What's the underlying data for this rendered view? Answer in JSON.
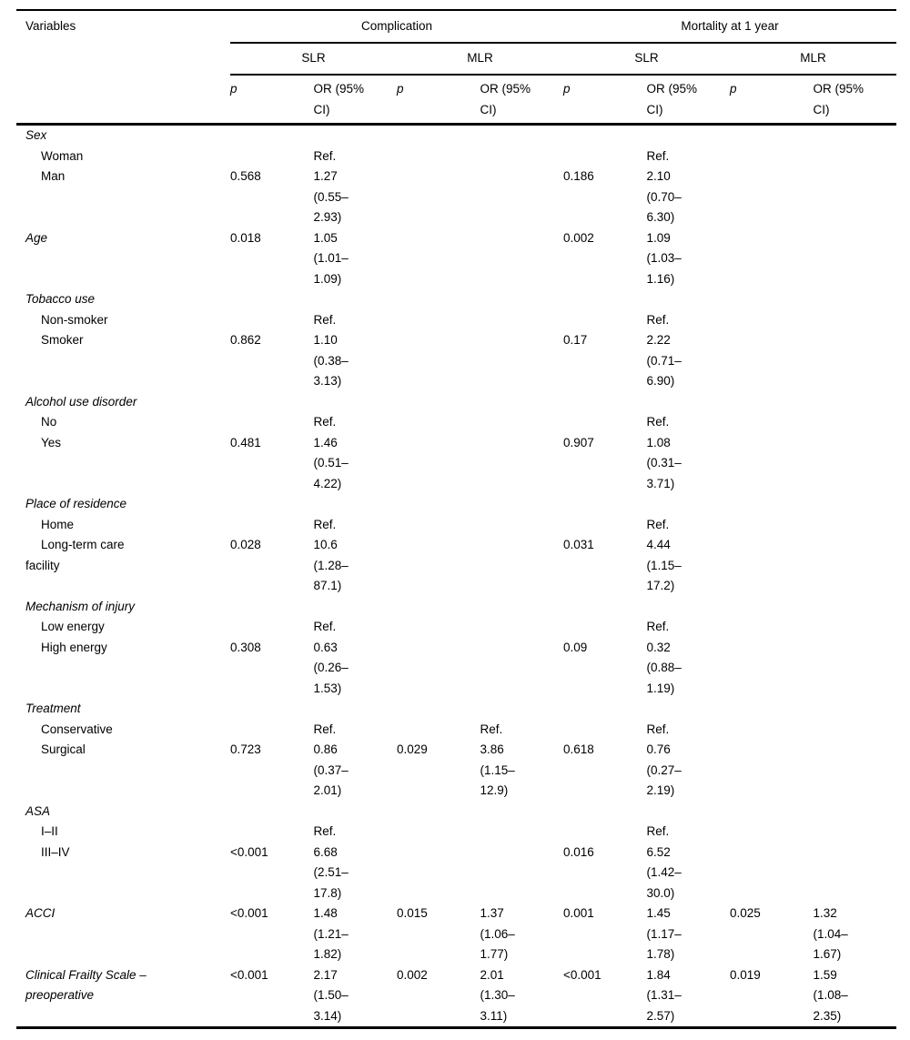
{
  "table": {
    "col_headers": {
      "variables": "Variables",
      "groups": [
        {
          "label": "Complication"
        },
        {
          "label": "Mortality at 1 year"
        }
      ],
      "subgroups": [
        "SLR",
        "MLR",
        "SLR",
        "MLR"
      ],
      "p_label": "p",
      "or_label": "OR (95%\nCI)"
    },
    "rows": [
      {
        "label": "Sex",
        "style": "section",
        "cells": [
          "",
          "",
          "",
          "",
          "",
          "",
          "",
          ""
        ]
      },
      {
        "label": "Woman",
        "style": "item",
        "cells": [
          "",
          "Ref.",
          "",
          "",
          "",
          "Ref.",
          "",
          ""
        ]
      },
      {
        "label": "Man",
        "style": "item",
        "cells": [
          "0.568",
          "1.27\n(0.55–\n2.93)",
          "",
          "",
          "0.186",
          "2.10\n(0.70–\n6.30)",
          "",
          ""
        ]
      },
      {
        "label": "Age",
        "style": "section",
        "cells": [
          "0.018",
          "1.05\n(1.01–\n1.09)",
          "",
          "",
          "0.002",
          "1.09\n(1.03–\n1.16)",
          "",
          ""
        ]
      },
      {
        "label": "Tobacco use",
        "style": "section",
        "cells": [
          "",
          "",
          "",
          "",
          "",
          "",
          "",
          ""
        ]
      },
      {
        "label": "Non-smoker",
        "style": "item",
        "cells": [
          "",
          "Ref.",
          "",
          "",
          "",
          "Ref.",
          "",
          ""
        ]
      },
      {
        "label": "Smoker",
        "style": "item",
        "cells": [
          "0.862",
          "1.10\n(0.38–\n3.13)",
          "",
          "",
          "0.17",
          "2.22\n(0.71–\n6.90)",
          "",
          ""
        ]
      },
      {
        "label": "Alcohol use disorder",
        "style": "section",
        "cells": [
          "",
          "",
          "",
          "",
          "",
          "",
          "",
          ""
        ]
      },
      {
        "label": "No",
        "style": "item",
        "cells": [
          "",
          "Ref.",
          "",
          "",
          "",
          "Ref.",
          "",
          ""
        ]
      },
      {
        "label": "Yes",
        "style": "item",
        "cells": [
          "0.481",
          "1.46\n(0.51–\n4.22)",
          "",
          "",
          "0.907",
          "1.08\n(0.31–\n3.71)",
          "",
          ""
        ]
      },
      {
        "label": "Place of residence",
        "style": "section",
        "cells": [
          "",
          "",
          "",
          "",
          "",
          "",
          "",
          ""
        ]
      },
      {
        "label": "Home",
        "style": "item",
        "cells": [
          "",
          "Ref.",
          "",
          "",
          "",
          "Ref.",
          "",
          ""
        ]
      },
      {
        "label": "Long-term care\nfacility",
        "style": "item",
        "cells": [
          "0.028",
          "10.6\n(1.28–\n87.1)",
          "",
          "",
          "0.031",
          "4.44\n(1.15–\n17.2)",
          "",
          ""
        ]
      },
      {
        "label": "Mechanism of injury",
        "style": "section",
        "cells": [
          "",
          "",
          "",
          "",
          "",
          "",
          "",
          ""
        ]
      },
      {
        "label": "Low energy",
        "style": "item",
        "cells": [
          "",
          "Ref.",
          "",
          "",
          "",
          "Ref.",
          "",
          ""
        ]
      },
      {
        "label": "High energy",
        "style": "item",
        "cells": [
          "0.308",
          "0.63\n(0.26–\n1.53)",
          "",
          "",
          "0.09",
          "0.32\n(0.88–\n1.19)",
          "",
          ""
        ]
      },
      {
        "label": "Treatment",
        "style": "section",
        "cells": [
          "",
          "",
          "",
          "",
          "",
          "",
          "",
          ""
        ]
      },
      {
        "label": "Conservative",
        "style": "item",
        "cells": [
          "",
          "Ref.",
          "",
          "Ref.",
          "",
          "Ref.",
          "",
          ""
        ]
      },
      {
        "label": "Surgical",
        "style": "item",
        "cells": [
          "0.723",
          "0.86\n(0.37–\n2.01)",
          "0.029",
          "3.86\n(1.15–\n12.9)",
          "0.618",
          "0.76\n(0.27–\n2.19)",
          "",
          ""
        ]
      },
      {
        "label": "ASA",
        "style": "section",
        "cells": [
          "",
          "",
          "",
          "",
          "",
          "",
          "",
          ""
        ]
      },
      {
        "label": "I–II",
        "style": "item",
        "cells": [
          "",
          "Ref.",
          "",
          "",
          "",
          "Ref.",
          "",
          ""
        ]
      },
      {
        "label": "III–IV",
        "style": "item",
        "cells": [
          "<0.001",
          "6.68\n(2.51–\n17.8)",
          "",
          "",
          "0.016",
          "6.52\n(1.42–\n30.0)",
          "",
          ""
        ]
      },
      {
        "label": "ACCI",
        "style": "section",
        "cells": [
          "<0.001",
          "1.48\n(1.21–\n1.82)",
          "0.015",
          "1.37\n(1.06–\n1.77)",
          "0.001",
          "1.45\n(1.17–\n1.78)",
          "0.025",
          "1.32\n(1.04–\n1.67)"
        ]
      },
      {
        "label": "Clinical Frailty Scale –\npreoperative",
        "style": "section",
        "cells": [
          "<0.001",
          "2.17\n(1.50–\n3.14)",
          "0.002",
          "2.01\n(1.30–\n3.11)",
          "<0.001",
          "1.84\n(1.31–\n2.57)",
          "0.019",
          "1.59\n(1.08–\n2.35)"
        ]
      }
    ]
  }
}
